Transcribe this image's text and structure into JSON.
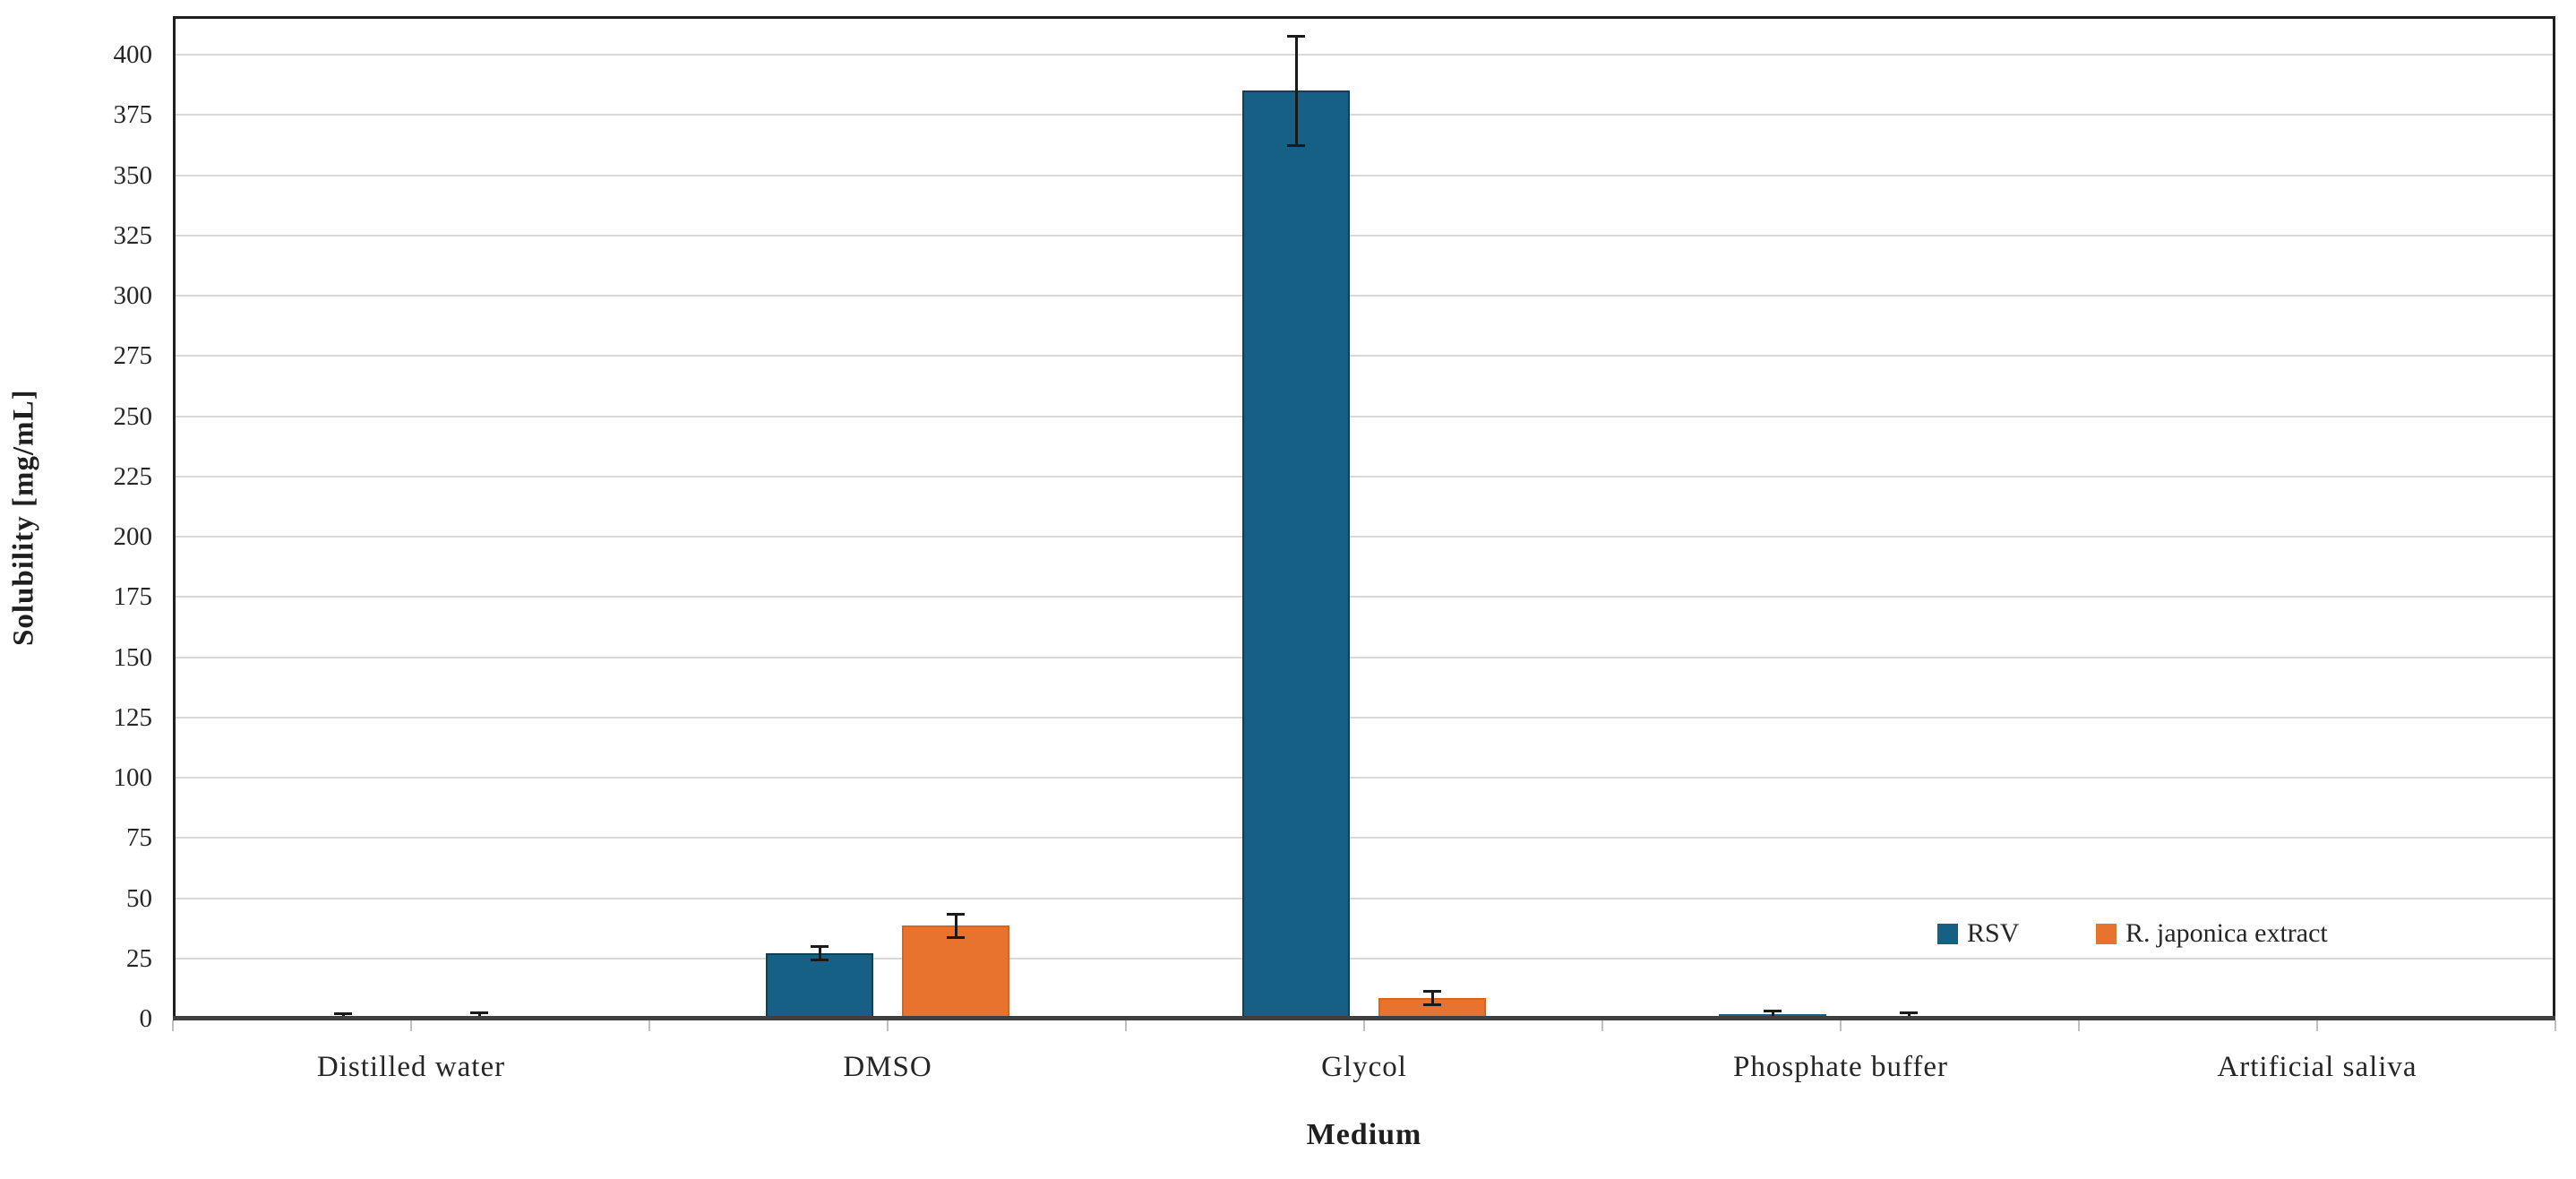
{
  "chart_data": {
    "type": "bar",
    "title": "",
    "xlabel": "Medium",
    "ylabel": "Solubility [mg/mL]",
    "categories": [
      "Distilled water",
      "DMSO",
      "Glycol",
      "Phosphate buffer",
      "Artificial saliva"
    ],
    "series": [
      {
        "name": "RSV",
        "color": "#156084",
        "border_color": "#0d4157",
        "values": [
          0.3,
          27,
          385,
          2,
          0.05
        ],
        "errors": [
          2,
          3,
          23,
          1.5,
          0
        ]
      },
      {
        "name": "R. japonica extract",
        "color": "#E8732E",
        "border_color": "#d9641f",
        "values": [
          0.5,
          38.5,
          8.5,
          0.6,
          0.05
        ],
        "errors": [
          2,
          5,
          3,
          2,
          0
        ]
      }
    ],
    "yticks": [
      0,
      25,
      50,
      75,
      100,
      125,
      150,
      175,
      200,
      225,
      250,
      275,
      300,
      325,
      350,
      375,
      400
    ],
    "ylim": [
      0,
      416
    ],
    "grid": "horizontal",
    "legend_position": "inside-right",
    "colors": {
      "gridline": "#D9D9D9",
      "axis_line": "#3F3F3F",
      "frame": "#1F1F1F",
      "tick": "#BFBFBF",
      "error_bar": "#1A1A1A",
      "text": "#1F1F1F",
      "background": "#FFFFFF"
    }
  }
}
